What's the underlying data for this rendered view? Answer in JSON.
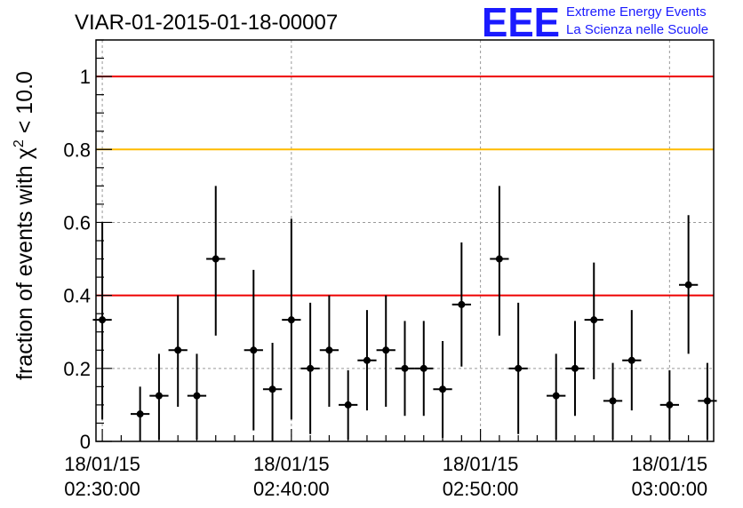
{
  "title": "VIAR-01-2015-01-18-00007",
  "logo": {
    "mark": "EEE",
    "line1": "Extreme Energy Events",
    "line2": "La Scienza nelle Scuole",
    "color": "#1a1aff"
  },
  "chart_data": {
    "type": "scatter",
    "ylabel": "fraction of events with χ² < 10.0",
    "ylabel_parts": {
      "prefix": "fraction of events with ",
      "symbol": "χ",
      "sup": "2",
      "suffix": " < 10.0"
    },
    "xlabel": "",
    "x_time_range": [
      "18/01/15 02:29:40",
      "18/01/15 03:02:20"
    ],
    "ylim": [
      0,
      1.1
    ],
    "yticks": [
      0,
      0.2,
      0.4,
      0.6,
      0.8,
      1
    ],
    "ytick_labels": [
      "0",
      "0.2",
      "0.4",
      "0.6",
      "0.8",
      "1"
    ],
    "xticks": [
      {
        "time": "18/01/15 02:30:00",
        "line1": "18/01/15",
        "line2": "02:30:00"
      },
      {
        "time": "18/01/15 02:40:00",
        "line1": "18/01/15",
        "line2": "02:40:00"
      },
      {
        "time": "18/01/15 02:50:00",
        "line1": "18/01/15",
        "line2": "02:50:00"
      },
      {
        "time": "18/01/15 03:00:00",
        "line1": "18/01/15",
        "line2": "03:00:00"
      }
    ],
    "grid": true,
    "reference_lines": [
      {
        "y": 1.0,
        "color": "#ee0000"
      },
      {
        "y": 0.8,
        "color": "#ffbb00"
      },
      {
        "y": 0.4,
        "color": "#ee0000"
      }
    ],
    "bin_width_minutes": 1,
    "points": [
      {
        "time": "02:30:00",
        "y": 0.333,
        "y_low": 0.06,
        "y_high": 0.6
      },
      {
        "time": "02:32:00",
        "y": 0.075,
        "y_low": 0.0,
        "y_high": 0.15
      },
      {
        "time": "02:33:00",
        "y": 0.125,
        "y_low": 0.005,
        "y_high": 0.24
      },
      {
        "time": "02:34:00",
        "y": 0.25,
        "y_low": 0.095,
        "y_high": 0.4
      },
      {
        "time": "02:35:00",
        "y": 0.125,
        "y_low": 0.005,
        "y_high": 0.24
      },
      {
        "time": "02:36:00",
        "y": 0.5,
        "y_low": 0.29,
        "y_high": 0.7
      },
      {
        "time": "02:38:00",
        "y": 0.25,
        "y_low": 0.03,
        "y_high": 0.47
      },
      {
        "time": "02:39:00",
        "y": 0.143,
        "y_low": 0.0,
        "y_high": 0.27
      },
      {
        "time": "02:40:00",
        "y": 0.333,
        "y_low": 0.06,
        "y_high": 0.61
      },
      {
        "time": "02:41:00",
        "y": 0.2,
        "y_low": 0.02,
        "y_high": 0.38
      },
      {
        "time": "02:42:00",
        "y": 0.25,
        "y_low": 0.095,
        "y_high": 0.4
      },
      {
        "time": "02:43:00",
        "y": 0.1,
        "y_low": 0.005,
        "y_high": 0.195
      },
      {
        "time": "02:44:00",
        "y": 0.222,
        "y_low": 0.085,
        "y_high": 0.36
      },
      {
        "time": "02:45:00",
        "y": 0.25,
        "y_low": 0.095,
        "y_high": 0.4
      },
      {
        "time": "02:46:00",
        "y": 0.2,
        "y_low": 0.07,
        "y_high": 0.33
      },
      {
        "time": "02:47:00",
        "y": 0.2,
        "y_low": 0.07,
        "y_high": 0.33
      },
      {
        "time": "02:48:00",
        "y": 0.143,
        "y_low": 0.01,
        "y_high": 0.275
      },
      {
        "time": "02:49:00",
        "y": 0.375,
        "y_low": 0.205,
        "y_high": 0.545
      },
      {
        "time": "02:51:00",
        "y": 0.5,
        "y_low": 0.29,
        "y_high": 0.7
      },
      {
        "time": "02:52:00",
        "y": 0.2,
        "y_low": 0.02,
        "y_high": 0.38
      },
      {
        "time": "02:54:00",
        "y": 0.125,
        "y_low": 0.005,
        "y_high": 0.24
      },
      {
        "time": "02:55:00",
        "y": 0.2,
        "y_low": 0.07,
        "y_high": 0.33
      },
      {
        "time": "02:56:00",
        "y": 0.333,
        "y_low": 0.17,
        "y_high": 0.49
      },
      {
        "time": "02:57:00",
        "y": 0.111,
        "y_low": 0.005,
        "y_high": 0.215
      },
      {
        "time": "02:58:00",
        "y": 0.222,
        "y_low": 0.085,
        "y_high": 0.36
      },
      {
        "time": "03:00:00",
        "y": 0.1,
        "y_low": 0.005,
        "y_high": 0.195
      },
      {
        "time": "03:01:00",
        "y": 0.429,
        "y_low": 0.24,
        "y_high": 0.62
      },
      {
        "time": "03:02:00",
        "y": 0.111,
        "y_low": 0.005,
        "y_high": 0.215
      }
    ]
  }
}
